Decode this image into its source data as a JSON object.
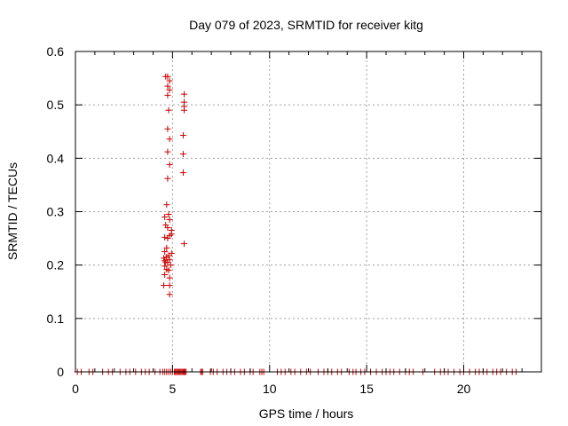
{
  "chart_data": {
    "type": "scatter",
    "title": "Day 079 of 2023, SRMTID for receiver kitg",
    "xlabel": "GPS time / hours",
    "ylabel": "SRMTID / TECUs",
    "xlim": [
      0,
      24
    ],
    "ylim": [
      0,
      0.6
    ],
    "xticks": [
      0,
      5,
      10,
      15,
      20
    ],
    "xtick_labels": [
      "0",
      "5",
      "10",
      "15",
      "20"
    ],
    "yticks": [
      0,
      0.1,
      0.2,
      0.3,
      0.4,
      0.5,
      0.6
    ],
    "ytick_labels": [
      "0",
      "0.1",
      "0.2",
      "0.3",
      "0.4",
      "0.5",
      "0.6"
    ],
    "grid": true,
    "marker": "+",
    "color": "#cc0000",
    "series": [
      {
        "name": "SRMTID",
        "points": [
          [
            4.65,
            0.553
          ],
          [
            4.75,
            0.553
          ],
          [
            4.85,
            0.545
          ],
          [
            4.75,
            0.535
          ],
          [
            4.85,
            0.528
          ],
          [
            4.75,
            0.518
          ],
          [
            4.8,
            0.49
          ],
          [
            4.75,
            0.455
          ],
          [
            4.85,
            0.436
          ],
          [
            4.75,
            0.412
          ],
          [
            4.85,
            0.388
          ],
          [
            4.75,
            0.362
          ],
          [
            4.7,
            0.313
          ],
          [
            4.8,
            0.295
          ],
          [
            4.6,
            0.29
          ],
          [
            4.85,
            0.285
          ],
          [
            4.65,
            0.275
          ],
          [
            4.75,
            0.27
          ],
          [
            4.95,
            0.265
          ],
          [
            4.85,
            0.255
          ],
          [
            4.95,
            0.258
          ],
          [
            4.6,
            0.252
          ],
          [
            4.75,
            0.25
          ],
          [
            4.7,
            0.232
          ],
          [
            4.6,
            0.225
          ],
          [
            4.95,
            0.222
          ],
          [
            4.7,
            0.215
          ],
          [
            4.8,
            0.218
          ],
          [
            4.85,
            0.21
          ],
          [
            4.6,
            0.208
          ],
          [
            4.75,
            0.205
          ],
          [
            4.9,
            0.2
          ],
          [
            4.6,
            0.198
          ],
          [
            4.7,
            0.192
          ],
          [
            4.8,
            0.19
          ],
          [
            4.6,
            0.182
          ],
          [
            4.85,
            0.176
          ],
          [
            4.55,
            0.162
          ],
          [
            4.85,
            0.162
          ],
          [
            4.85,
            0.145
          ],
          [
            4.65,
            0.205
          ],
          [
            4.55,
            0.213
          ],
          [
            5.6,
            0.52
          ],
          [
            5.6,
            0.505
          ],
          [
            5.6,
            0.497
          ],
          [
            5.6,
            0.49
          ],
          [
            5.55,
            0.443
          ],
          [
            5.55,
            0.408
          ],
          [
            5.55,
            0.373
          ],
          [
            5.6,
            0.24
          ],
          [
            0.1,
            0
          ],
          [
            0.3,
            0
          ],
          [
            0.7,
            0
          ],
          [
            0.9,
            0
          ],
          [
            1.4,
            0
          ],
          [
            1.7,
            0
          ],
          [
            1.9,
            0
          ],
          [
            2.3,
            0
          ],
          [
            2.6,
            0
          ],
          [
            2.8,
            0
          ],
          [
            3.1,
            0
          ],
          [
            3.4,
            0
          ],
          [
            3.6,
            0
          ],
          [
            3.8,
            0
          ],
          [
            4.1,
            0
          ],
          [
            4.35,
            0
          ],
          [
            4.5,
            0
          ],
          [
            4.6,
            0
          ],
          [
            4.7,
            0
          ],
          [
            4.8,
            0
          ],
          [
            4.9,
            0
          ],
          [
            5.0,
            0
          ],
          [
            5.1,
            0
          ],
          [
            5.15,
            0
          ],
          [
            5.2,
            0
          ],
          [
            5.25,
            0
          ],
          [
            5.3,
            0
          ],
          [
            5.35,
            0
          ],
          [
            5.4,
            0
          ],
          [
            5.45,
            0
          ],
          [
            5.5,
            0
          ],
          [
            5.55,
            0
          ],
          [
            5.6,
            0
          ],
          [
            5.65,
            0
          ],
          [
            5.7,
            0
          ],
          [
            6.45,
            0
          ],
          [
            6.5,
            0
          ],
          [
            6.55,
            0
          ],
          [
            6.95,
            0
          ],
          [
            7.1,
            0
          ],
          [
            7.3,
            0
          ],
          [
            7.6,
            0
          ],
          [
            7.8,
            0
          ],
          [
            8.0,
            0
          ],
          [
            8.2,
            0
          ],
          [
            8.5,
            0
          ],
          [
            8.7,
            0
          ],
          [
            9.0,
            0
          ],
          [
            9.15,
            0
          ],
          [
            9.5,
            0
          ],
          [
            9.6,
            0
          ],
          [
            9.7,
            0
          ],
          [
            10.4,
            0
          ],
          [
            10.6,
            0
          ],
          [
            10.8,
            0
          ],
          [
            11.1,
            0
          ],
          [
            11.3,
            0
          ],
          [
            11.6,
            0
          ],
          [
            11.9,
            0
          ],
          [
            12.1,
            0
          ],
          [
            12.5,
            0
          ],
          [
            12.8,
            0
          ],
          [
            13.0,
            0
          ],
          [
            13.2,
            0
          ],
          [
            13.5,
            0
          ],
          [
            13.7,
            0
          ],
          [
            14.1,
            0
          ],
          [
            14.3,
            0
          ],
          [
            14.45,
            0
          ],
          [
            14.7,
            0
          ],
          [
            14.9,
            0
          ],
          [
            15.2,
            0
          ],
          [
            15.5,
            0
          ],
          [
            15.8,
            0
          ],
          [
            16.0,
            0
          ],
          [
            16.2,
            0
          ],
          [
            16.4,
            0
          ],
          [
            16.7,
            0
          ],
          [
            17.0,
            0
          ],
          [
            17.2,
            0
          ],
          [
            17.4,
            0
          ],
          [
            17.9,
            0
          ],
          [
            18.5,
            0
          ],
          [
            18.8,
            0
          ],
          [
            19.0,
            0
          ],
          [
            19.2,
            0
          ],
          [
            19.5,
            0
          ],
          [
            19.8,
            0
          ],
          [
            20.0,
            0
          ],
          [
            20.3,
            0
          ],
          [
            20.6,
            0
          ],
          [
            20.8,
            0
          ],
          [
            21.0,
            0
          ],
          [
            21.2,
            0
          ],
          [
            21.5,
            0
          ],
          [
            21.7,
            0
          ],
          [
            21.9,
            0
          ],
          [
            22.2,
            0
          ],
          [
            22.5,
            0
          ],
          [
            22.7,
            0
          ]
        ]
      }
    ]
  }
}
